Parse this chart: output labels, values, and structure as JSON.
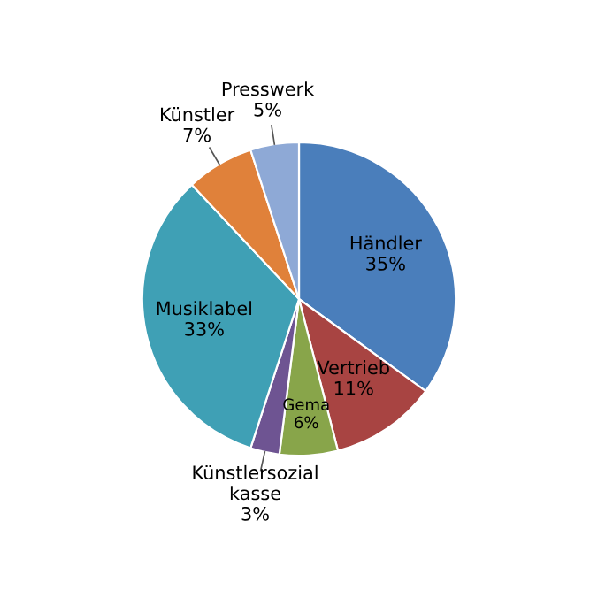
{
  "chart_data": {
    "type": "pie",
    "categories": [
      "Händler",
      "Vertrieb",
      "Gema",
      "Künstlersozial\nkasse",
      "Musiklabel",
      "Künstler",
      "Presswerk"
    ],
    "values": [
      35,
      11,
      6,
      3,
      33,
      7,
      5
    ],
    "value_labels": [
      "35%",
      "11%",
      "6%",
      "3%",
      "33%",
      "7%",
      "5%"
    ],
    "colors": [
      "#4a7ebb",
      "#a84442",
      "#88a54a",
      "#6e5492",
      "#3fa0b5",
      "#e0813a",
      "#8ea9d6"
    ],
    "legend": false
  }
}
